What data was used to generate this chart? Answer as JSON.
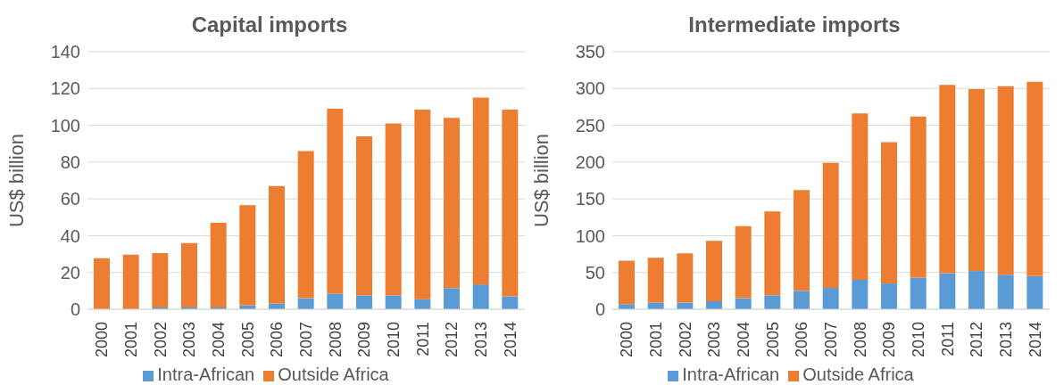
{
  "chart_data": [
    {
      "type": "bar",
      "title": "Capital imports",
      "ylabel": "US$ billion",
      "categories": [
        "2000",
        "2001",
        "2002",
        "2003",
        "2004",
        "2005",
        "2006",
        "2007",
        "2008",
        "2009",
        "2010",
        "2011",
        "2012",
        "2013",
        "2014"
      ],
      "stacked": true,
      "series": [
        {
          "name": "Intra-African",
          "color": "#5b9bd5",
          "values": [
            null,
            null,
            1,
            1,
            1,
            2,
            3,
            6,
            8.5,
            7.5,
            7.5,
            5.5,
            11.5,
            13.5,
            7
          ]
        },
        {
          "name": "Outside Africa",
          "color": "#ed7d31",
          "values": [
            27.7,
            29.7,
            29.5,
            35,
            46,
            54.5,
            64,
            80,
            100.5,
            86.5,
            93.5,
            103,
            92.5,
            101.5,
            101.5
          ]
        }
      ],
      "ylim": [
        0,
        140
      ],
      "yticks": [
        0,
        20,
        40,
        60,
        80,
        100,
        120,
        140
      ],
      "grid": "y",
      "legend": "bottom"
    },
    {
      "type": "bar",
      "title": "Intermediate imports",
      "ylabel": "US$ billion",
      "categories": [
        "2000",
        "2001",
        "2002",
        "2003",
        "2004",
        "2005",
        "2006",
        "2007",
        "2008",
        "2009",
        "2010",
        "2011",
        "2012",
        "2013",
        "2014"
      ],
      "stacked": true,
      "series": [
        {
          "name": "Intra-African",
          "color": "#5b9bd5",
          "values": [
            7,
            9,
            9,
            11,
            15,
            19,
            25,
            29,
            40,
            35,
            43,
            49,
            52,
            47,
            45
          ]
        },
        {
          "name": "Outside Africa",
          "color": "#ed7d31",
          "values": [
            59,
            61,
            67,
            82,
            98,
            114,
            137,
            170,
            226,
            192,
            219,
            256,
            247,
            256,
            264
          ]
        }
      ],
      "ylim": [
        0,
        350
      ],
      "yticks": [
        0,
        50,
        100,
        150,
        200,
        250,
        300,
        350
      ],
      "grid": "y",
      "legend": "bottom"
    }
  ]
}
